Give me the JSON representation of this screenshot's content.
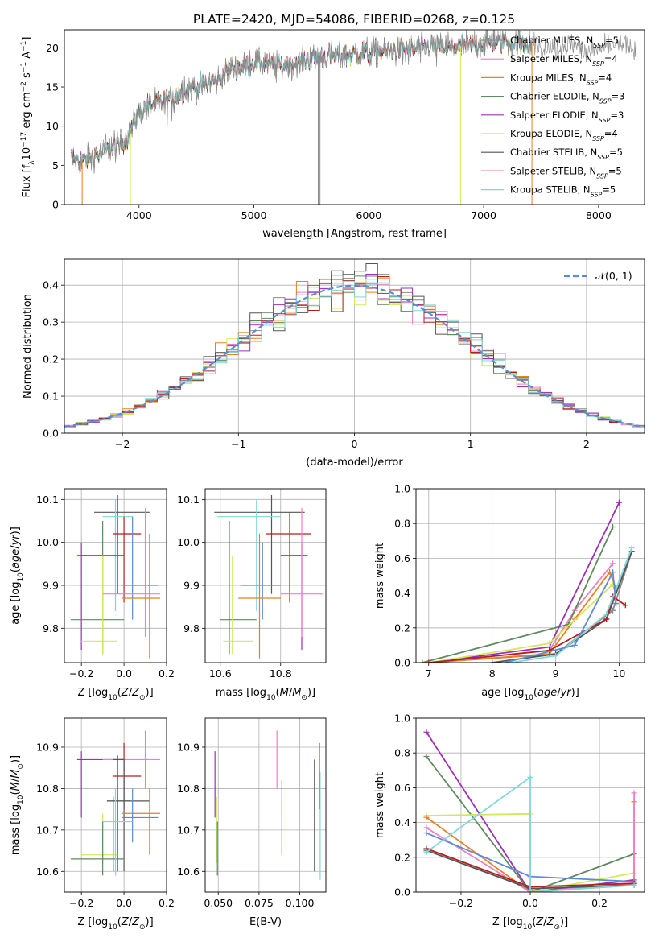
{
  "figure": {
    "title": "PLATE=2420, MJD=54086, FIBERID=0268, z=0.125"
  },
  "chart_data": [
    {
      "id": "spectrum",
      "type": "line",
      "xlabel": "wavelength [Angstrom, rest frame]",
      "ylabel": "Flux [f_λ 10^-17 erg cm^-2 s^-1 A^-1]",
      "xlim": [
        3350,
        8400
      ],
      "ylim": [
        0,
        22.3
      ],
      "xticks": [
        4000,
        5000,
        6000,
        7000,
        8000
      ],
      "yticks": [
        0,
        5,
        10,
        15,
        20
      ],
      "grid": false,
      "legend_position": "top-right",
      "series": [
        {
          "name": "Chabrier MILES, N_SSP=5",
          "color": "#8c8c8c"
        },
        {
          "name": "Salpeter MILES, N_SSP=4",
          "color": "#f07ec4"
        },
        {
          "name": "Kroupa MILES, N_SSP=4",
          "color": "#e8801e"
        },
        {
          "name": "Chabrier ELODIE, N_SSP=3",
          "color": "#5e8a5e"
        },
        {
          "name": "Salpeter ELODIE, N_SSP=3",
          "color": "#9b30b5"
        },
        {
          "name": "Kroupa ELODIE, N_SSP=4",
          "color": "#d4e85a"
        },
        {
          "name": "Chabrier STELIB, N_SSP=5",
          "color": "#555555"
        },
        {
          "name": "Salpeter STELIB, N_SSP=5",
          "color": "#b21f1f"
        },
        {
          "name": "Kroupa STELIB, N_SSP=5",
          "color": "#7fd8d8"
        }
      ],
      "continuum": {
        "x": [
          3400,
          3500,
          3600,
          3700,
          3800,
          3900,
          4000,
          4100,
          4200,
          4300,
          4400,
          4500,
          4600,
          4700,
          4800,
          4900,
          5000,
          5100,
          5200,
          5300,
          5400,
          5500,
          5600,
          5700,
          5800,
          5900,
          6000,
          6100,
          6200,
          6300,
          6400,
          6500,
          6600,
          6700,
          6800,
          6900,
          7000,
          7100,
          7200,
          7300,
          7400,
          7500,
          7600,
          7700,
          7800,
          7900,
          8000,
          8100,
          8200,
          8300
        ],
        "y": [
          5.8,
          5.5,
          6.0,
          6.8,
          7.4,
          8.6,
          11.8,
          12.8,
          13.0,
          13.5,
          14.8,
          15.0,
          15.4,
          16.0,
          17.5,
          17.6,
          18.2,
          18.0,
          17.5,
          17.8,
          18.2,
          18.6,
          18.8,
          19.0,
          19.0,
          19.3,
          19.4,
          19.6,
          19.6,
          19.8,
          19.8,
          20.0,
          20.2,
          20.0,
          20.2,
          20.4,
          20.6,
          20.8,
          20.8,
          20.6,
          20.6,
          20.4,
          19.8,
          20.4,
          20.6,
          19.4,
          19.8,
          20.2,
          20.4,
          20.0
        ]
      }
    },
    {
      "id": "residuals",
      "type": "step",
      "xlabel": "(data-model)/error",
      "ylabel": "Normed distribution",
      "xlim": [
        -2.5,
        2.5
      ],
      "ylim": [
        0,
        0.47
      ],
      "xticks": [
        -2,
        -1,
        0,
        1,
        2
      ],
      "yticks": [
        0.0,
        0.1,
        0.2,
        0.3,
        0.4
      ],
      "grid": true,
      "legend_position": "top-right",
      "legend": [
        "N(0,1)"
      ],
      "series_colors": [
        "#8c8c8c",
        "#f07ec4",
        "#e8801e",
        "#5e8a5e",
        "#9b30b5",
        "#d4e85a",
        "#555555",
        "#b21f1f",
        "#7fd8d8"
      ],
      "normal_color": "#5b8bd6"
    },
    {
      "id": "age-vs-Z",
      "type": "scatter",
      "xlabel": "Z [log10(Z/Z☉)]",
      "ylabel": "age [log10(age/yr)]",
      "xlim": [
        -0.28,
        0.2
      ],
      "ylim": [
        9.72,
        10.125
      ],
      "xticks": [
        -0.2,
        0.0,
        0.2
      ],
      "yticks": [
        9.8,
        9.9,
        10.0,
        10.1
      ],
      "grid": true,
      "points": [
        {
          "color": "#555555",
          "x": -0.03,
          "xlo": -0.14,
          "xhi": 0.12,
          "y": 10.07,
          "ylo": 9.88,
          "yhi": 10.11
        },
        {
          "color": "#7fd8d8",
          "x": -0.04,
          "xlo": -0.1,
          "xhi": 0.04,
          "y": 10.06,
          "ylo": 9.84,
          "yhi": 10.1
        },
        {
          "color": "#b21f1f",
          "x": 0.0,
          "xlo": -0.05,
          "xhi": 0.08,
          "y": 10.02,
          "ylo": 9.86,
          "yhi": 10.06
        },
        {
          "color": "#9b30b5",
          "x": -0.2,
          "xlo": -0.22,
          "xhi": 0.0,
          "y": 9.97,
          "ylo": 9.75,
          "yhi": 10.0
        },
        {
          "color": "#5b8bd6",
          "x": 0.04,
          "xlo": -0.01,
          "xhi": 0.16,
          "y": 9.9,
          "ylo": 9.82,
          "yhi": 10.06
        },
        {
          "color": "#f07ec4",
          "x": 0.1,
          "xlo": -0.1,
          "xhi": 0.17,
          "y": 9.88,
          "ylo": 9.78,
          "yhi": 10.08
        },
        {
          "color": "#e8801e",
          "x": 0.12,
          "xlo": -0.01,
          "xhi": 0.17,
          "y": 9.87,
          "ylo": 9.73,
          "yhi": 10.02
        },
        {
          "color": "#5e8a5e",
          "x": -0.1,
          "xlo": -0.25,
          "xhi": 0.0,
          "y": 9.82,
          "ylo": 9.74,
          "yhi": 10.05
        },
        {
          "color": "#d4e85a",
          "x": -0.1,
          "xlo": -0.2,
          "xhi": -0.03,
          "y": 9.77,
          "ylo": 9.74,
          "yhi": 9.97
        }
      ]
    },
    {
      "id": "age-vs-mass",
      "type": "scatter",
      "xlabel": "mass [log10(M/M☉)]",
      "ylabel": "",
      "xlim": [
        10.55,
        10.95
      ],
      "ylim": [
        9.72,
        10.125
      ],
      "xticks": [
        10.6,
        10.8
      ],
      "yticks": [
        9.8,
        9.9,
        10.0,
        10.1
      ],
      "grid": true,
      "points": [
        {
          "color": "#555555",
          "x": 10.77,
          "xlo": 10.58,
          "xhi": 10.88,
          "y": 10.07,
          "ylo": 9.88,
          "yhi": 10.11
        },
        {
          "color": "#7fd8d8",
          "x": 10.72,
          "xlo": 10.59,
          "xhi": 10.8,
          "y": 10.06,
          "ylo": 9.84,
          "yhi": 10.1
        },
        {
          "color": "#b21f1f",
          "x": 10.83,
          "xlo": 10.75,
          "xhi": 10.9,
          "y": 10.02,
          "ylo": 9.86,
          "yhi": 10.07
        },
        {
          "color": "#9b30b5",
          "x": 10.87,
          "xlo": 10.8,
          "xhi": 10.89,
          "y": 9.97,
          "ylo": 9.75,
          "yhi": 10.0
        },
        {
          "color": "#5b8bd6",
          "x": 10.74,
          "xlo": 10.67,
          "xhi": 10.8,
          "y": 9.9,
          "ylo": 9.82,
          "yhi": 10.0
        },
        {
          "color": "#f07ec4",
          "x": 10.87,
          "xlo": 10.8,
          "xhi": 10.94,
          "y": 9.88,
          "ylo": 9.78,
          "yhi": 10.08
        },
        {
          "color": "#e8801e",
          "x": 10.73,
          "xlo": 10.66,
          "xhi": 10.8,
          "y": 9.87,
          "ylo": 9.73,
          "yhi": 10.02
        },
        {
          "color": "#5e8a5e",
          "x": 10.63,
          "xlo": 10.6,
          "xhi": 10.72,
          "y": 9.82,
          "ylo": 9.74,
          "yhi": 10.05
        },
        {
          "color": "#d4e85a",
          "x": 10.64,
          "xlo": 10.61,
          "xhi": 10.71,
          "y": 9.77,
          "ylo": 9.74,
          "yhi": 9.97
        }
      ]
    },
    {
      "id": "mass-weight-vs-age",
      "type": "line",
      "xlabel": "age [log10(age/yr)]",
      "ylabel": "mass weight",
      "xlim": [
        6.8,
        10.4
      ],
      "ylim": [
        0,
        1.0
      ],
      "xticks": [
        7,
        8,
        9,
        10
      ],
      "yticks": [
        0.0,
        0.2,
        0.4,
        0.6,
        0.8,
        1.0
      ],
      "grid": true,
      "series": [
        {
          "color": "#8c8c8c",
          "x": [
            7.0,
            9.0,
            9.9,
            10.2
          ],
          "y": [
            0.0,
            0.05,
            0.3,
            0.64
          ]
        },
        {
          "color": "#f07ec4",
          "x": [
            7.0,
            8.9,
            9.3,
            9.9
          ],
          "y": [
            0.0,
            0.07,
            0.3,
            0.57
          ]
        },
        {
          "color": "#e8801e",
          "x": [
            7.0,
            8.9,
            9.3,
            9.85,
            9.95
          ],
          "y": [
            0.0,
            0.05,
            0.25,
            0.52,
            0.43
          ]
        },
        {
          "color": "#5e8a5e",
          "x": [
            6.9,
            9.2,
            9.9
          ],
          "y": [
            0.0,
            0.22,
            0.78
          ]
        },
        {
          "color": "#9b30b5",
          "x": [
            7.0,
            8.9,
            10.0
          ],
          "y": [
            0.0,
            0.09,
            0.92
          ]
        },
        {
          "color": "#d4e85a",
          "x": [
            7.0,
            8.9,
            9.9
          ],
          "y": [
            0.0,
            0.11,
            0.45
          ]
        },
        {
          "color": "#555555",
          "x": [
            8.0,
            9.0,
            9.8,
            10.2
          ],
          "y": [
            0.0,
            0.05,
            0.25,
            0.64
          ]
        },
        {
          "color": "#b21f1f",
          "x": [
            7.0,
            8.9,
            9.8,
            9.9,
            10.1
          ],
          "y": [
            0.0,
            0.07,
            0.25,
            0.38,
            0.33
          ]
        },
        {
          "color": "#7fd8d8",
          "x": [
            8.3,
            9.0,
            9.8,
            10.2
          ],
          "y": [
            0.0,
            0.04,
            0.28,
            0.66
          ]
        },
        {
          "color": "#5b8bd6",
          "x": [
            8.2,
            9.3,
            9.9,
            9.95
          ],
          "y": [
            0.0,
            0.1,
            0.52,
            0.34
          ]
        }
      ]
    },
    {
      "id": "mass-vs-Z",
      "type": "scatter",
      "xlabel": "Z [log10(Z/Z☉)]",
      "ylabel": "mass [log10(M/M☉)]",
      "xlim": [
        -0.28,
        0.2
      ],
      "ylim": [
        10.55,
        10.97
      ],
      "xticks": [
        -0.2,
        0.0,
        0.2
      ],
      "yticks": [
        10.6,
        10.7,
        10.8,
        10.9
      ],
      "grid": true,
      "points": [
        {
          "color": "#9b30b5",
          "x": -0.2,
          "xlo": -0.22,
          "xhi": 0.0,
          "y": 10.87,
          "ylo": 10.73,
          "yhi": 10.89
        },
        {
          "color": "#f07ec4",
          "x": 0.1,
          "xlo": -0.1,
          "xhi": 0.17,
          "y": 10.87,
          "ylo": 10.8,
          "yhi": 10.94
        },
        {
          "color": "#555555",
          "x": -0.03,
          "xlo": -0.05,
          "xhi": 0.0,
          "y": 10.87,
          "ylo": 10.6,
          "yhi": 10.88
        },
        {
          "color": "#b21f1f",
          "x": 0.0,
          "xlo": -0.05,
          "xhi": 0.08,
          "y": 10.83,
          "ylo": 10.75,
          "yhi": 10.91
        },
        {
          "color": "#5e8a5e",
          "x": -0.05,
          "xlo": -0.08,
          "xhi": 0.03,
          "y": 10.77,
          "ylo": 10.6,
          "yhi": 10.78
        },
        {
          "color": "#555555",
          "x": 0.0,
          "xlo": -0.08,
          "xhi": 0.12,
          "y": 10.77,
          "ylo": 10.6,
          "yhi": 10.87
        },
        {
          "color": "#e8801e",
          "x": 0.12,
          "xlo": -0.01,
          "xhi": 0.17,
          "y": 10.74,
          "ylo": 10.64,
          "yhi": 10.8
        },
        {
          "color": "#5b8bd6",
          "x": 0.04,
          "xlo": -0.01,
          "xhi": 0.16,
          "y": 10.73,
          "ylo": 10.67,
          "yhi": 10.8
        },
        {
          "color": "#d4e85a",
          "x": -0.1,
          "xlo": -0.2,
          "xhi": -0.03,
          "y": 10.64,
          "ylo": 10.62,
          "yhi": 10.74
        },
        {
          "color": "#5e8a5e",
          "x": -0.1,
          "xlo": -0.25,
          "xhi": 0.0,
          "y": 10.63,
          "ylo": 10.59,
          "yhi": 10.72
        },
        {
          "color": "#7fd8d8",
          "x": -0.04,
          "xlo": -0.1,
          "xhi": 0.04,
          "y": 10.72,
          "ylo": 10.59,
          "yhi": 10.8
        }
      ]
    },
    {
      "id": "mass-vs-ebv",
      "type": "scatter",
      "xlabel": "E(B-V)",
      "ylabel": "",
      "xlim": [
        0.042,
        0.116
      ],
      "ylim": [
        10.55,
        10.97
      ],
      "xticks": [
        0.05,
        0.075,
        0.1
      ],
      "yticks": [
        10.6,
        10.7,
        10.8,
        10.9
      ],
      "grid": true,
      "points": [
        {
          "color": "#9b30b5",
          "x": 0.048,
          "ylo": 10.73,
          "yhi": 10.89
        },
        {
          "color": "#d4e85a",
          "x": 0.049,
          "ylo": 10.62,
          "yhi": 10.78
        },
        {
          "color": "#5e8a5e",
          "x": 0.0495,
          "ylo": 10.59,
          "yhi": 10.72
        },
        {
          "color": "#f07ec4",
          "x": 0.086,
          "ylo": 10.8,
          "yhi": 10.94
        },
        {
          "color": "#e8801e",
          "x": 0.089,
          "ylo": 10.64,
          "yhi": 10.82
        },
        {
          "color": "#555555",
          "x": 0.109,
          "ylo": 10.6,
          "yhi": 10.87
        },
        {
          "color": "#b21f1f",
          "x": 0.112,
          "ylo": 10.75,
          "yhi": 10.91
        },
        {
          "color": "#7fd8d8",
          "x": 0.1125,
          "ylo": 10.58,
          "yhi": 10.84
        }
      ]
    },
    {
      "id": "mass-weight-vs-Z",
      "type": "line",
      "xlabel": "Z [log10(Z/Z☉)]",
      "ylabel": "mass weight",
      "xlim": [
        -0.33,
        0.33
      ],
      "ylim": [
        0,
        1.0
      ],
      "xticks": [
        -0.2,
        0.0,
        0.2
      ],
      "yticks": [
        0.0,
        0.2,
        0.4,
        0.6,
        0.8,
        1.0
      ],
      "grid": true,
      "series": [
        {
          "color": "#9b30b5",
          "x": [
            -0.3,
            0.0,
            0.3
          ],
          "y": [
            0.92,
            0.0,
            0.07
          ]
        },
        {
          "color": "#5e8a5e",
          "x": [
            -0.3,
            0.0,
            0.3
          ],
          "y": [
            0.78,
            0.0,
            0.22
          ]
        },
        {
          "color": "#d4e85a",
          "x": [
            -0.3,
            0.0,
            0.0,
            0.3
          ],
          "y": [
            0.44,
            0.45,
            0.0,
            0.11
          ]
        },
        {
          "color": "#e8801e",
          "x": [
            -0.3,
            0.0,
            0.3,
            0.3
          ],
          "y": [
            0.43,
            0.0,
            0.04,
            0.52
          ]
        },
        {
          "color": "#f07ec4",
          "x": [
            -0.3,
            0.0,
            0.3,
            0.3
          ],
          "y": [
            0.37,
            0.0,
            0.05,
            0.57
          ]
        },
        {
          "color": "#5b8bd6",
          "x": [
            -0.3,
            0.0,
            0.3
          ],
          "y": [
            0.34,
            0.09,
            0.06
          ]
        },
        {
          "color": "#b21f1f",
          "x": [
            -0.3,
            0.0,
            0.3
          ],
          "y": [
            0.25,
            0.03,
            0.05
          ]
        },
        {
          "color": "#555555",
          "x": [
            -0.3,
            0.0,
            0.3
          ],
          "y": [
            0.24,
            0.02,
            0.04
          ]
        },
        {
          "color": "#7fd8d8",
          "x": [
            -0.3,
            0.0,
            0.0,
            0.3
          ],
          "y": [
            0.23,
            0.66,
            0.0,
            0.04
          ]
        }
      ]
    }
  ]
}
